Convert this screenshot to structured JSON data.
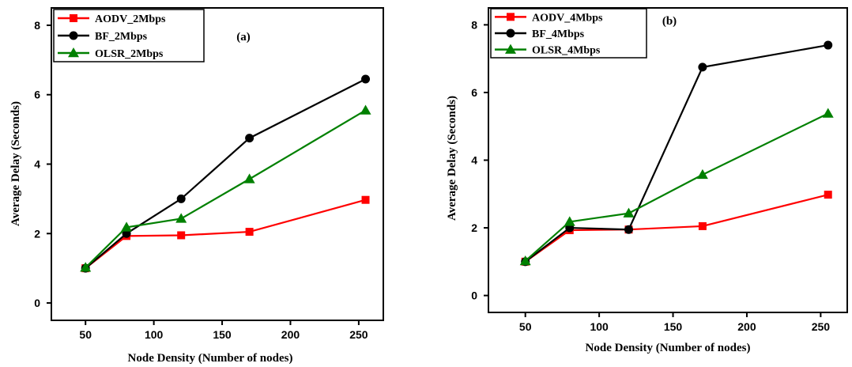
{
  "chart_data": [
    {
      "type": "line",
      "panel_label": "(a)",
      "xlabel": "Node Density (Number of nodes)",
      "ylabel": "Average Delay (Seconds)",
      "xlim": [
        25,
        268
      ],
      "ylim": [
        -0.5,
        8.5
      ],
      "xticks": [
        50,
        100,
        150,
        200,
        250
      ],
      "yticks": [
        0,
        2,
        4,
        6,
        8
      ],
      "legend_position": "top-left",
      "grid": false,
      "series": [
        {
          "name": "AODV_2Mbps",
          "color": "#ff0000",
          "marker": "square",
          "x": [
            50,
            80,
            120,
            170,
            255
          ],
          "y": [
            1.0,
            1.93,
            1.95,
            2.05,
            2.97
          ]
        },
        {
          "name": "BF_2Mbps",
          "color": "#000000",
          "marker": "circle",
          "x": [
            50,
            80,
            120,
            170,
            255
          ],
          "y": [
            1.0,
            2.0,
            3.0,
            4.75,
            6.45
          ]
        },
        {
          "name": "OLSR_2Mbps",
          "color": "#008000",
          "marker": "triangle",
          "x": [
            50,
            80,
            120,
            170,
            255
          ],
          "y": [
            1.02,
            2.18,
            2.43,
            3.57,
            5.55
          ]
        }
      ]
    },
    {
      "type": "line",
      "panel_label": "(b)",
      "xlabel": "Node Density (Number of nodes)",
      "ylabel": "Average Delay (Seconds)",
      "xlim": [
        25,
        268
      ],
      "ylim": [
        -0.5,
        8.5
      ],
      "xticks": [
        50,
        100,
        150,
        200,
        250
      ],
      "yticks": [
        0,
        2,
        4,
        6,
        8
      ],
      "legend_position": "top-left",
      "grid": false,
      "series": [
        {
          "name": "AODV_4Mbps",
          "color": "#ff0000",
          "marker": "square",
          "x": [
            50,
            80,
            120,
            170,
            255
          ],
          "y": [
            1.0,
            1.93,
            1.95,
            2.05,
            2.98
          ]
        },
        {
          "name": "BF_4Mbps",
          "color": "#000000",
          "marker": "circle",
          "x": [
            50,
            80,
            120,
            170,
            255
          ],
          "y": [
            1.0,
            2.0,
            1.95,
            6.75,
            7.4
          ]
        },
        {
          "name": "OLSR_4Mbps",
          "color": "#008000",
          "marker": "triangle",
          "x": [
            50,
            80,
            120,
            170,
            255
          ],
          "y": [
            1.02,
            2.18,
            2.43,
            3.57,
            5.38
          ]
        }
      ]
    }
  ]
}
